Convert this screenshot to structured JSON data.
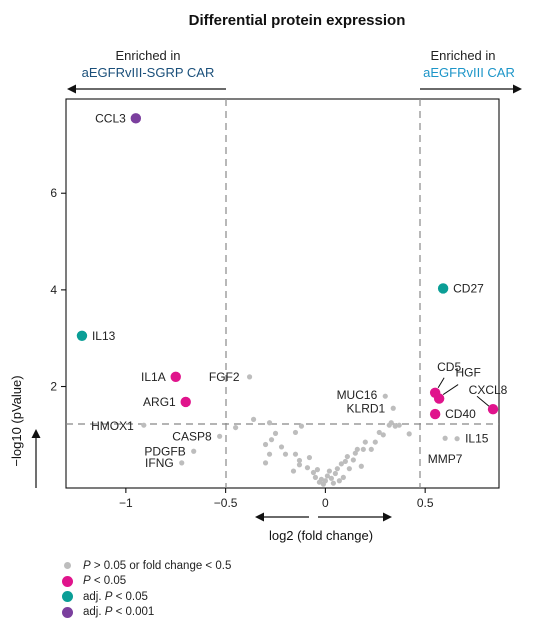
{
  "chart_data": {
    "type": "scatter",
    "title": "Differential protein expression",
    "xlabel": "log2 (fold change)",
    "ylabel": "−log10 (pValue)",
    "xlim": [
      -1.3,
      0.87
    ],
    "ylim": [
      -0.1,
      7.95
    ],
    "x_ticks": [
      {
        "value": -1,
        "label": "−1"
      },
      {
        "value": -0.5,
        "label": "−0.5"
      },
      {
        "value": 0,
        "label": "0"
      },
      {
        "value": 0.5,
        "label": "0.5"
      }
    ],
    "y_ticks": [
      {
        "value": 2,
        "label": "2"
      },
      {
        "value": 4,
        "label": "4"
      },
      {
        "value": 6,
        "label": "6"
      }
    ],
    "thresholds": {
      "fold_change": [
        -0.5,
        0.5
      ],
      "p_value_line": 1.3
    },
    "enriched_left": {
      "line1": "Enriched in",
      "line2": "aEGFRvIII-SGRP CAR"
    },
    "enriched_right": {
      "line1": "Enriched in",
      "line2": "aEGFRvIII CAR"
    },
    "colors": {
      "ns": "#bdbdbd",
      "p005": "#e0148c",
      "adj005": "#0a9e96",
      "adj0001": "#7b3f9e",
      "left_group": "#1a4f7a",
      "right_group": "#1c95c8"
    },
    "legend": [
      {
        "prefix": "",
        "italic": "P",
        "suffix": " > 0.05 or fold change < 0.5",
        "class": "ns"
      },
      {
        "prefix": "",
        "italic": "P",
        "suffix": " < 0.05",
        "class": "p005"
      },
      {
        "prefix": "adj. ",
        "italic": "P",
        "suffix": " < 0.05",
        "class": "adj005"
      },
      {
        "prefix": "adj. ",
        "italic": "P",
        "suffix": " < 0.001",
        "class": "adj0001"
      }
    ],
    "labeled_points": [
      {
        "label": "CCL3",
        "x": -0.95,
        "y": 7.55,
        "class": "adj0001"
      },
      {
        "label": "IL13",
        "x": -1.22,
        "y": 3.05,
        "class": "adj005"
      },
      {
        "label": "CD27",
        "x": 0.59,
        "y": 4.03,
        "class": "adj005"
      },
      {
        "label": "IL1A",
        "x": -0.75,
        "y": 2.2,
        "class": "p005"
      },
      {
        "label": "ARG1",
        "x": -0.7,
        "y": 1.68,
        "class": "p005"
      },
      {
        "label": "CD5",
        "x": 0.55,
        "y": 1.87,
        "class": "p005"
      },
      {
        "label": "HGF",
        "x": 0.57,
        "y": 1.75,
        "class": "p005"
      },
      {
        "label": "CXCL8",
        "x": 0.84,
        "y": 1.53,
        "class": "p005"
      },
      {
        "label": "CD40",
        "x": 0.55,
        "y": 1.43,
        "class": "p005"
      },
      {
        "label": "FGF2",
        "x": -0.38,
        "y": 2.2,
        "class": "ns"
      },
      {
        "label": "MUC16",
        "x": 0.3,
        "y": 1.8,
        "class": "ns"
      },
      {
        "label": "KLRD1",
        "x": 0.34,
        "y": 1.55,
        "class": "ns"
      },
      {
        "label": "HMOX1",
        "x": -0.91,
        "y": 1.2,
        "class": "ns"
      },
      {
        "label": "CASP8",
        "x": -0.53,
        "y": 0.97,
        "class": "ns"
      },
      {
        "label": "PDGFB",
        "x": -0.66,
        "y": 0.66,
        "class": "ns"
      },
      {
        "label": "IFNG",
        "x": -0.72,
        "y": 0.42,
        "class": "ns"
      },
      {
        "label": "IL15",
        "x": 0.66,
        "y": 0.92,
        "class": "ns"
      },
      {
        "label": "MMP7",
        "x": 0.6,
        "y": 0.93,
        "class": "ns"
      }
    ],
    "other_points": [
      [
        -0.36,
        1.32
      ],
      [
        -0.28,
        1.25
      ],
      [
        -0.25,
        1.03
      ],
      [
        -0.27,
        0.9
      ],
      [
        -0.3,
        0.8
      ],
      [
        -0.22,
        0.75
      ],
      [
        -0.28,
        0.6
      ],
      [
        -0.2,
        0.6
      ],
      [
        -0.3,
        0.42
      ],
      [
        -0.15,
        1.05
      ],
      [
        -0.12,
        1.18
      ],
      [
        -0.15,
        0.6
      ],
      [
        -0.13,
        0.47
      ],
      [
        -0.08,
        0.53
      ],
      [
        -0.13,
        0.38
      ],
      [
        -0.09,
        0.32
      ],
      [
        -0.16,
        0.25
      ],
      [
        -0.06,
        0.22
      ],
      [
        -0.05,
        0.12
      ],
      [
        -0.04,
        0.28
      ],
      [
        -0.02,
        0.08
      ],
      [
        0.0,
        0.05
      ],
      [
        0.01,
        0.15
      ],
      [
        0.02,
        0.25
      ],
      [
        0.03,
        0.1
      ],
      [
        0.05,
        0.2
      ],
      [
        0.06,
        0.3
      ],
      [
        0.08,
        0.4
      ],
      [
        0.1,
        0.45
      ],
      [
        0.11,
        0.55
      ],
      [
        0.12,
        0.3
      ],
      [
        0.14,
        0.48
      ],
      [
        0.15,
        0.62
      ],
      [
        0.16,
        0.7
      ],
      [
        0.18,
        0.35
      ],
      [
        0.19,
        0.7
      ],
      [
        0.2,
        0.85
      ],
      [
        0.23,
        0.7
      ],
      [
        0.25,
        0.85
      ],
      [
        0.27,
        1.05
      ],
      [
        0.29,
        1.0
      ],
      [
        0.32,
        1.2
      ],
      [
        0.33,
        1.25
      ],
      [
        0.35,
        1.18
      ],
      [
        0.37,
        1.2
      ],
      [
        0.42,
        1.02
      ],
      [
        -0.45,
        1.15
      ],
      [
        0.04,
        0.0
      ],
      [
        -0.01,
        -0.02
      ],
      [
        0.07,
        0.05
      ],
      [
        -0.03,
        0.02
      ],
      [
        0.09,
        0.12
      ]
    ]
  }
}
